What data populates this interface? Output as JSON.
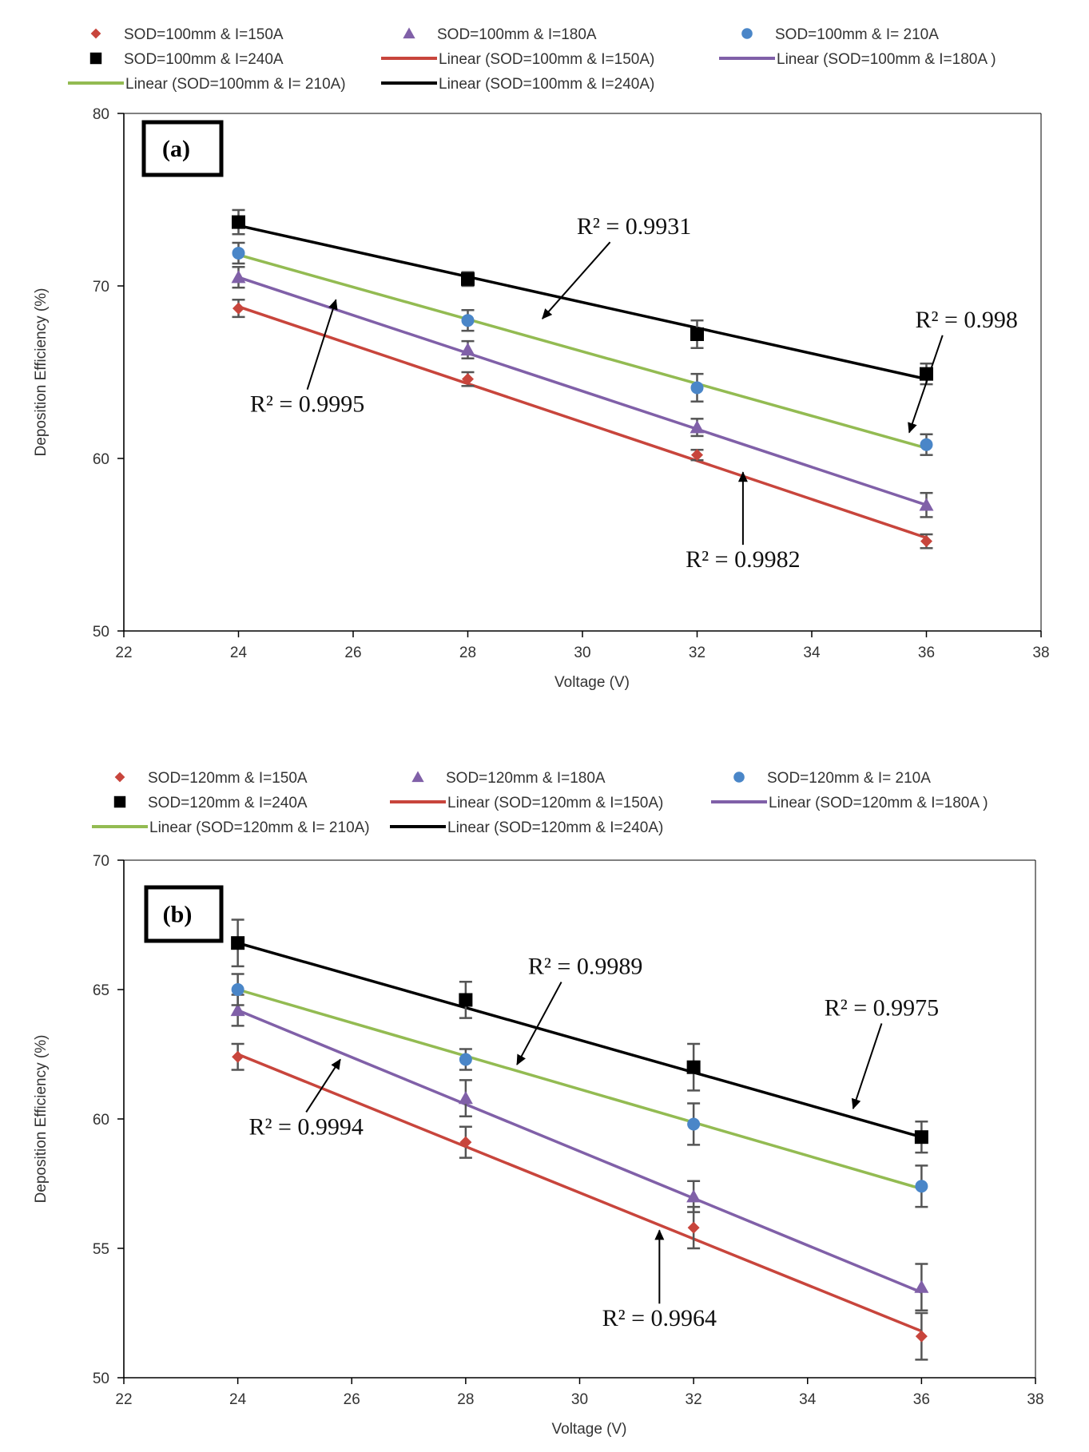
{
  "colors": {
    "s150": "#c8453c",
    "s180": "#8060a8",
    "s210": "#4a86c8",
    "s240": "#000000",
    "fit150": "#c8453c",
    "fit180": "#8060a8",
    "fit210": "#93bb52",
    "fit240": "#000000",
    "errorbar": "#555555"
  },
  "chart_data": [
    {
      "type": "scatter",
      "panel_label": "(a)",
      "xlabel": "Voltage (V)",
      "ylabel": "Deposition Efficiency (%)",
      "xlim": [
        22,
        38
      ],
      "ylim": [
        50,
        80
      ],
      "xticks": [
        "22",
        "24",
        "26",
        "28",
        "30",
        "32",
        "34",
        "36",
        "38"
      ],
      "yticks": [
        "50",
        "60",
        "70",
        "80"
      ],
      "grid": false,
      "legend_position": "top",
      "x": [
        24,
        28,
        32,
        36
      ],
      "series": [
        {
          "name": "SOD=100mm & I=150A",
          "marker": "diamond",
          "color_key": "s150",
          "values": [
            68.7,
            64.6,
            60.2,
            55.2
          ],
          "errors": [
            0.5,
            0.4,
            0.3,
            0.4
          ]
        },
        {
          "name": "SOD=100mm & I=180A",
          "marker": "triangle",
          "color_key": "s180",
          "values": [
            70.5,
            66.3,
            61.8,
            57.3
          ],
          "errors": [
            0.6,
            0.5,
            0.5,
            0.7
          ]
        },
        {
          "name": "SOD=100mm & I= 210A",
          "marker": "circle",
          "color_key": "s210",
          "values": [
            71.9,
            68.0,
            64.1,
            60.8
          ],
          "errors": [
            0.6,
            0.6,
            0.8,
            0.6
          ]
        },
        {
          "name": "SOD=100mm & I=240A",
          "marker": "square",
          "color_key": "s240",
          "values": [
            73.7,
            70.4,
            67.2,
            64.9
          ],
          "errors": [
            0.7,
            0.4,
            0.8,
            0.6
          ]
        }
      ],
      "trendlines": [
        {
          "name": "Linear (SOD=100mm & I=150A)",
          "color_key": "fit150",
          "x": [
            24,
            36
          ],
          "y": [
            68.8,
            55.4
          ]
        },
        {
          "name": "Linear (SOD=100mm & I=180A )",
          "color_key": "fit180",
          "x": [
            24,
            36
          ],
          "y": [
            70.5,
            57.3
          ]
        },
        {
          "name": "Linear (SOD=100mm & I= 210A)",
          "color_key": "fit210",
          "x": [
            24,
            36
          ],
          "y": [
            71.8,
            60.6
          ]
        },
        {
          "name": "Linear (SOD=100mm & I=240A)",
          "color_key": "fit240",
          "x": [
            24,
            36
          ],
          "y": [
            73.5,
            64.6
          ]
        }
      ],
      "annotations": [
        {
          "text": "R² = 0.9931",
          "pointer_x": 29.3,
          "pointer_y": 68.1,
          "text_x": 30.9,
          "text_y": 73.0
        },
        {
          "text": "R² = 0.998",
          "pointer_x": 35.7,
          "pointer_y": 61.5,
          "text_x": 36.7,
          "text_y": 67.6
        },
        {
          "text": "R² = 0.9995",
          "pointer_x": 25.7,
          "pointer_y": 69.2,
          "text_x": 25.2,
          "text_y": 62.7
        },
        {
          "text": "R² = 0.9982",
          "pointer_x": 32.8,
          "pointer_y": 59.2,
          "text_x": 32.8,
          "text_y": 53.7
        }
      ],
      "legend_rows": [
        [
          {
            "kind": "marker",
            "series": 0
          },
          {
            "kind": "marker",
            "series": 1
          },
          {
            "kind": "marker",
            "series": 2
          }
        ],
        [
          {
            "kind": "marker",
            "series": 3
          },
          {
            "kind": "line",
            "trend": 0
          },
          {
            "kind": "line",
            "trend": 1
          }
        ],
        [
          {
            "kind": "line",
            "trend": 2
          },
          {
            "kind": "line",
            "trend": 3
          }
        ]
      ]
    },
    {
      "type": "scatter",
      "panel_label": "(b)",
      "xlabel": "Voltage (V)",
      "ylabel": "Deposition Efficiency (%)",
      "xlim": [
        22,
        38
      ],
      "ylim": [
        50,
        70
      ],
      "xticks": [
        "22",
        "24",
        "26",
        "28",
        "30",
        "32",
        "34",
        "36",
        "38"
      ],
      "yticks": [
        "50",
        "55",
        "60",
        "65",
        "70"
      ],
      "grid": false,
      "legend_position": "top",
      "x": [
        24,
        28,
        32,
        36
      ],
      "series": [
        {
          "name": "SOD=120mm & I=150A",
          "marker": "diamond",
          "color_key": "s150",
          "values": [
            62.4,
            59.1,
            55.8,
            51.6
          ],
          "errors": [
            0.5,
            0.6,
            0.8,
            0.9
          ]
        },
        {
          "name": "SOD=120mm & I=180A",
          "marker": "triangle",
          "color_key": "s180",
          "values": [
            64.2,
            60.8,
            57.0,
            53.5
          ],
          "errors": [
            0.6,
            0.7,
            0.6,
            0.9
          ]
        },
        {
          "name": "SOD=120mm & I= 210A",
          "marker": "circle",
          "color_key": "s210",
          "values": [
            65.0,
            62.3,
            59.8,
            57.4
          ],
          "errors": [
            0.6,
            0.4,
            0.8,
            0.8
          ]
        },
        {
          "name": "SOD=120mm & I=240A",
          "marker": "square",
          "color_key": "s240",
          "values": [
            66.8,
            64.6,
            62.0,
            59.3
          ],
          "errors": [
            0.9,
            0.7,
            0.9,
            0.6
          ]
        }
      ],
      "trendlines": [
        {
          "name": "Linear (SOD=120mm & I=150A)",
          "color_key": "fit150",
          "x": [
            24,
            36
          ],
          "y": [
            62.5,
            51.8
          ]
        },
        {
          "name": "Linear (SOD=120mm & I=180A )",
          "color_key": "fit180",
          "x": [
            24,
            36
          ],
          "y": [
            64.2,
            53.3
          ]
        },
        {
          "name": "Linear (SOD=120mm & I= 210A)",
          "color_key": "fit210",
          "x": [
            24,
            36
          ],
          "y": [
            65.0,
            57.3
          ]
        },
        {
          "name": "Linear (SOD=120mm & I=240A)",
          "color_key": "fit240",
          "x": [
            24,
            36
          ],
          "y": [
            66.8,
            59.3
          ]
        }
      ],
      "annotations": [
        {
          "text": "R² = 0.9989",
          "pointer_x": 28.9,
          "pointer_y": 62.1,
          "text_x": 30.1,
          "text_y": 65.6
        },
        {
          "text": "R² = 0.9975",
          "pointer_x": 34.8,
          "pointer_y": 60.4,
          "text_x": 35.3,
          "text_y": 64.0
        },
        {
          "text": "R² = 0.9994",
          "pointer_x": 25.8,
          "pointer_y": 62.3,
          "text_x": 25.2,
          "text_y": 59.4
        },
        {
          "text": "R² = 0.9964",
          "pointer_x": 31.4,
          "pointer_y": 55.7,
          "text_x": 31.4,
          "text_y": 52.0
        }
      ],
      "legend_rows": [
        [
          {
            "kind": "marker",
            "series": 0
          },
          {
            "kind": "marker",
            "series": 1
          },
          {
            "kind": "marker",
            "series": 2
          }
        ],
        [
          {
            "kind": "marker",
            "series": 3
          },
          {
            "kind": "line",
            "trend": 0
          },
          {
            "kind": "line",
            "trend": 1
          }
        ],
        [
          {
            "kind": "line",
            "trend": 2
          },
          {
            "kind": "line",
            "trend": 3
          }
        ]
      ]
    }
  ]
}
